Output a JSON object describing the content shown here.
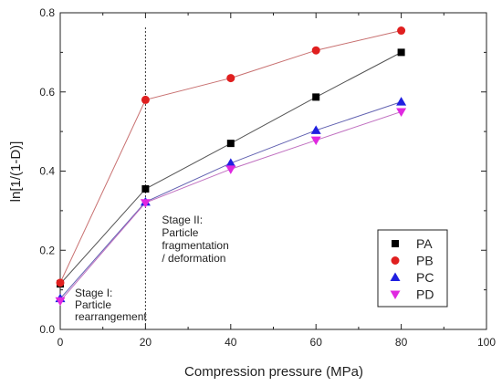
{
  "chart_data": {
    "type": "line",
    "title": "",
    "xlabel": "Compression pressure (MPa)",
    "ylabel": "ln[1/(1-D)]",
    "xlim": [
      0,
      100
    ],
    "ylim": [
      0.0,
      0.8
    ],
    "xticks": [
      0,
      20,
      40,
      60,
      80,
      100
    ],
    "yticks": [
      0.0,
      0.2,
      0.4,
      0.6,
      0.8
    ],
    "grid": false,
    "legend_position": "bottom-right",
    "x": [
      0,
      20,
      40,
      60,
      80
    ],
    "series": [
      {
        "name": "PA",
        "marker": "square",
        "color": "#000000",
        "line_color": "#555555",
        "values": [
          0.115,
          0.355,
          0.47,
          0.587,
          0.7
        ]
      },
      {
        "name": "PB",
        "marker": "circle",
        "color": "#e01f1f",
        "line_color": "#c87070",
        "values": [
          0.118,
          0.58,
          0.635,
          0.705,
          0.755
        ]
      },
      {
        "name": "PC",
        "marker": "triangle-up",
        "color": "#1f1fe0",
        "line_color": "#6060b0",
        "values": [
          0.078,
          0.322,
          0.42,
          0.503,
          0.575
        ]
      },
      {
        "name": "PD",
        "marker": "triangle-down",
        "color": "#e028e0",
        "line_color": "#c070c0",
        "values": [
          0.072,
          0.32,
          0.405,
          0.478,
          0.55
        ]
      }
    ],
    "divider_x": 20,
    "annotations": [
      {
        "lines": [
          "Stage I:",
          "Particle",
          "rearrangement"
        ]
      },
      {
        "lines": [
          "Stage II:",
          "Particle",
          "fragmentation",
          "/ deformation"
        ]
      }
    ]
  }
}
